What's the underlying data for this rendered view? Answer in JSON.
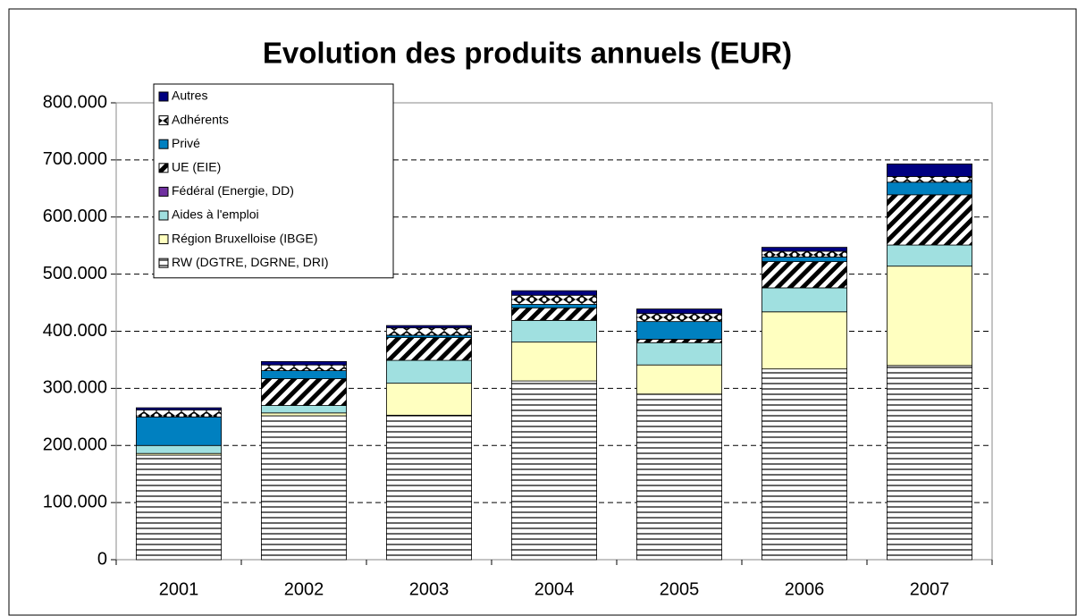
{
  "chart_data": {
    "type": "stacked_bar",
    "title": "Evolution des produits annuels (EUR)",
    "categories": [
      "2001",
      "2002",
      "2003",
      "2004",
      "2005",
      "2006",
      "2007"
    ],
    "series": [
      {
        "name": "RW (DGTRE, DGRNE, DRI)",
        "color": "#ffffff",
        "values": [
          183000,
          252000,
          253000,
          313000,
          290000,
          334000,
          340000
        ]
      },
      {
        "name": "Région Bruxelloise (IBGE)",
        "color": "#ffffc0",
        "values": [
          3000,
          5000,
          56000,
          68000,
          51000,
          100000,
          174000
        ]
      },
      {
        "name": "Aides à l'emploi",
        "color": "#a0e0e0",
        "values": [
          14000,
          13000,
          40000,
          38000,
          39000,
          42000,
          37000
        ]
      },
      {
        "name": "Fédéral (Energie, DD)",
        "color": "#7030a0",
        "values": [
          0,
          0,
          0,
          0,
          0,
          0,
          0
        ]
      },
      {
        "name": "UE (EIE)",
        "color": "#ffffff",
        "values": [
          0,
          47000,
          40000,
          22000,
          6000,
          46000,
          88000
        ]
      },
      {
        "name": "Privé",
        "color": "#0080c0",
        "values": [
          50000,
          14000,
          4000,
          6000,
          31000,
          8000,
          22000
        ]
      },
      {
        "name": "Adhérents",
        "color": "#ffffff",
        "values": [
          12000,
          10000,
          13000,
          16000,
          14000,
          10000,
          10000
        ]
      },
      {
        "name": "Autres",
        "color": "#000080",
        "values": [
          4000,
          6000,
          4000,
          8000,
          8000,
          7000,
          22000
        ]
      }
    ],
    "ylim": [
      0,
      800000
    ],
    "yticks": [
      0,
      {
        "value": 100000,
        "label": "100.000"
      },
      {
        "value": 200000,
        "label": "200.000"
      },
      {
        "value": 300000,
        "label": "300.000"
      },
      {
        "value": 400000,
        "label": "400.000"
      },
      {
        "value": 500000,
        "label": "500.000"
      },
      {
        "value": 600000,
        "label": "600.000"
      },
      {
        "value": 700000,
        "label": "700.000"
      },
      {
        "value": 800000,
        "label": "800.000"
      }
    ],
    "grid": true
  }
}
